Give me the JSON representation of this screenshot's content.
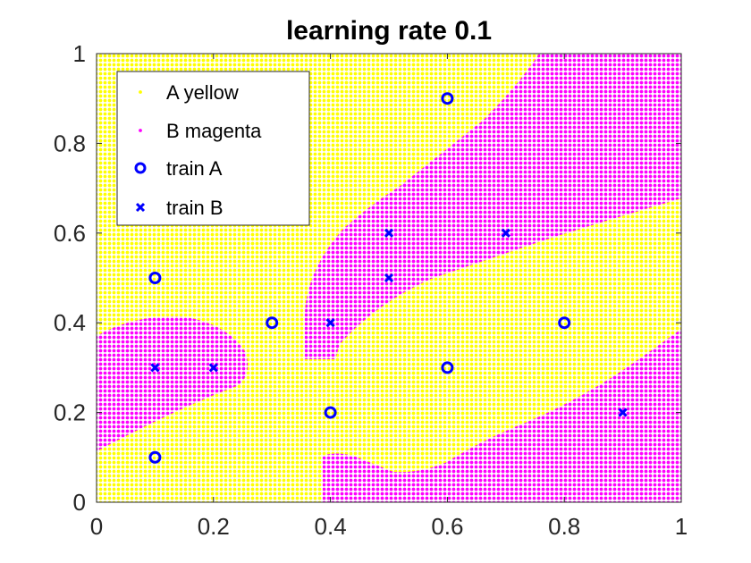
{
  "chart_data": {
    "type": "scatter",
    "title": "learning rate 0.1",
    "xlabel": "",
    "ylabel": "",
    "xlim": [
      0,
      1
    ],
    "ylim": [
      0,
      1
    ],
    "x_ticks": [
      "0",
      "0.2",
      "0.4",
      "0.6",
      "0.8",
      "1"
    ],
    "y_ticks": [
      "0",
      "0.2",
      "0.4",
      "0.6",
      "0.8",
      "1"
    ],
    "grid": false,
    "legend_position": "top-left",
    "colors": {
      "class_a_region": "#ffff00",
      "class_b_region": "#ff00ff",
      "train_markers": "#0000ff"
    },
    "series": [
      {
        "name": "A yellow",
        "kind": "decision-region",
        "class": "A"
      },
      {
        "name": "B magenta",
        "kind": "decision-region",
        "class": "B"
      },
      {
        "name": "train A",
        "kind": "training-point",
        "marker": "circle",
        "points": [
          [
            0.1,
            0.5
          ],
          [
            0.1,
            0.1
          ],
          [
            0.3,
            0.4
          ],
          [
            0.4,
            0.2
          ],
          [
            0.6,
            0.9
          ],
          [
            0.6,
            0.3
          ],
          [
            0.8,
            0.4
          ]
        ]
      },
      {
        "name": "train B",
        "kind": "training-point",
        "marker": "x",
        "points": [
          [
            0.1,
            0.3
          ],
          [
            0.2,
            0.3
          ],
          [
            0.4,
            0.4
          ],
          [
            0.5,
            0.6
          ],
          [
            0.5,
            0.5
          ],
          [
            0.7,
            0.6
          ],
          [
            0.9,
            0.2
          ]
        ]
      }
    ]
  }
}
